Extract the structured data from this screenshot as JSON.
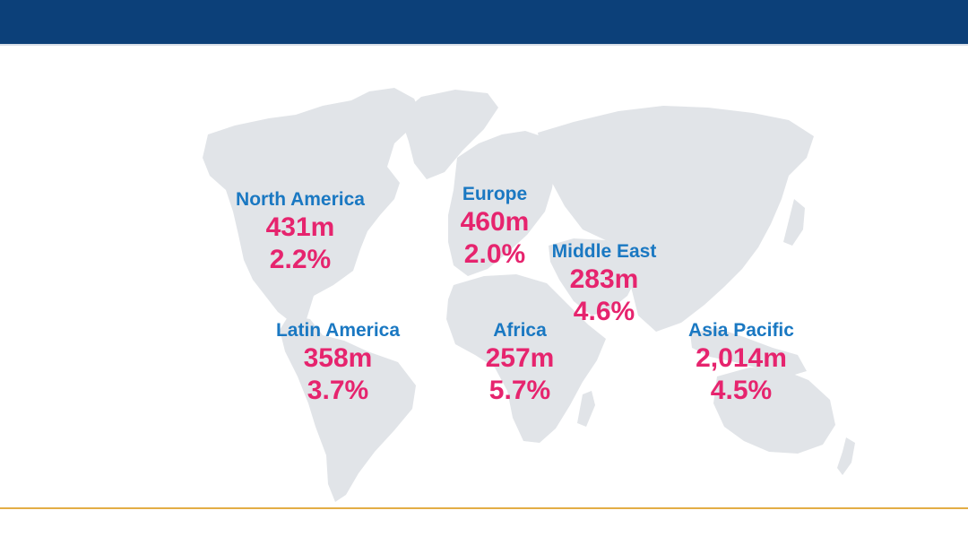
{
  "colors": {
    "header_bar": "#0c4079",
    "land": "#e1e4e8",
    "region_label": "#1a78c2",
    "region_value": "#e6246e",
    "footer_rule": "#e3ad45"
  },
  "regions": [
    {
      "name": "North America",
      "population": "431m",
      "growth": "2.2%"
    },
    {
      "name": "Europe",
      "population": "460m",
      "growth": "2.0%"
    },
    {
      "name": "Middle East",
      "population": "283m",
      "growth": "4.6%"
    },
    {
      "name": "Latin America",
      "population": "358m",
      "growth": "3.7%"
    },
    {
      "name": "Africa",
      "population": "257m",
      "growth": "5.7%"
    },
    {
      "name": "Asia Pacific",
      "population": "2,014m",
      "growth": "4.5%"
    }
  ]
}
